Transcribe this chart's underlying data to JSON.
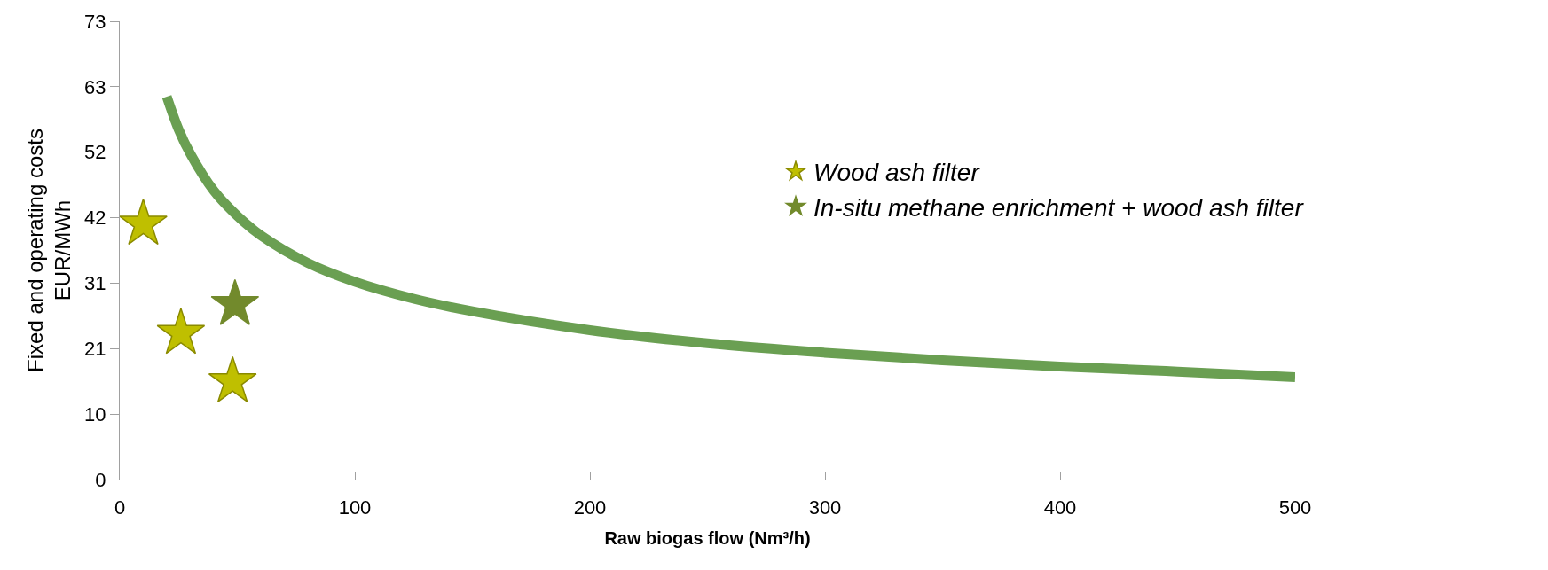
{
  "chart_data": {
    "type": "scatter",
    "xlabel": "Raw biogas flow (Nm³/h)",
    "ylabel": "Fixed and operating costs\nEUR/MWh",
    "xlim": [
      0,
      500
    ],
    "xticks": [
      0,
      100,
      200,
      300,
      400,
      500
    ],
    "ylim": [
      0,
      73
    ],
    "yticks": [
      0,
      {
        "value": 10.43,
        "label": "10"
      },
      {
        "value": 20.86,
        "label": "21"
      },
      {
        "value": 31.29,
        "label": "31"
      },
      {
        "value": 41.71,
        "label": "42"
      },
      {
        "value": 52.14,
        "label": "52"
      },
      {
        "value": 62.57,
        "label": "63"
      },
      73
    ],
    "legend": "top right",
    "series": [
      {
        "type": "line",
        "color": "#6a9f52",
        "x": [
          20,
          25,
          30,
          40,
          50,
          60,
          80,
          100,
          125,
          150,
          200,
          250,
          300,
          350,
          400,
          450,
          500
        ],
        "values": [
          61,
          55.8,
          51.9,
          46.0,
          42.0,
          38.9,
          34.5,
          31.5,
          28.8,
          26.8,
          23.8,
          21.7,
          20.2,
          19.0,
          18.0,
          17.2,
          16.3
        ]
      },
      {
        "name": "Wood ash filter",
        "color": "#bfbf00",
        "marker": "star",
        "x": [
          10,
          26,
          48
        ],
        "values": [
          40.7,
          23.3,
          15.6
        ]
      },
      {
        "name": "In-situ methane enrichment + wood ash filter",
        "color": "#728a2c",
        "marker": "star",
        "x": [
          49
        ],
        "values": [
          27.9
        ]
      }
    ]
  }
}
